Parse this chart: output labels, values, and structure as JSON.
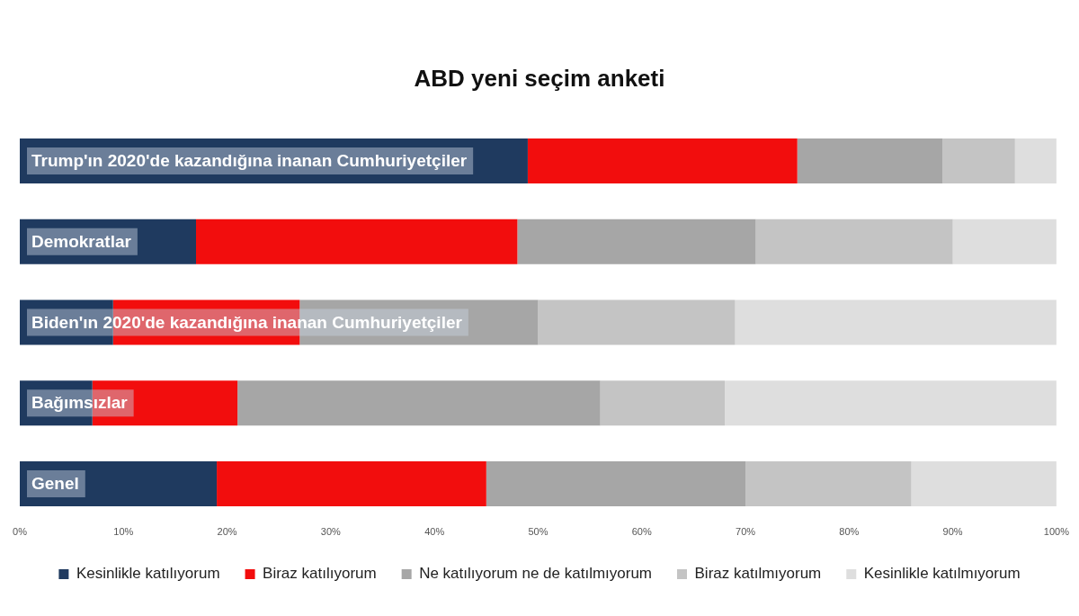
{
  "chart_data": {
    "type": "bar",
    "orientation": "horizontal",
    "stacked": true,
    "title": "ABD yeni seçim anketi",
    "categories": [
      "Trump'ın 2020'de kazandığına inanan Cumhuriyetçiler",
      "Demokratlar",
      "Biden'ın 2020'de kazandığına inanan Cumhuriyetçiler",
      "Bağımsızlar",
      "Genel"
    ],
    "series": [
      {
        "name": "Kesinlikle katılıyorum",
        "color": "#1f3a5f",
        "values": [
          49,
          17,
          9,
          7,
          19
        ]
      },
      {
        "name": "Biraz katılıyorum",
        "color": "#f20d0d",
        "values": [
          26,
          31,
          18,
          14,
          26
        ]
      },
      {
        "name": "Ne katılıyorum ne de katılmıyorum",
        "color": "#a6a6a6",
        "values": [
          14,
          23,
          23,
          35,
          25
        ]
      },
      {
        "name": "Biraz katılmıyorum",
        "color": "#c4c4c4",
        "values": [
          7,
          19,
          19,
          12,
          16
        ]
      },
      {
        "name": "Kesinlikle katılmıyorum",
        "color": "#dedede",
        "values": [
          4,
          10,
          31,
          32,
          14
        ]
      }
    ],
    "xlim": [
      0,
      100
    ],
    "xticks": [
      {
        "value": 0,
        "label": "0%"
      },
      {
        "value": 10,
        "label": "10%"
      },
      {
        "value": 20,
        "label": "20%"
      },
      {
        "value": 30,
        "label": "30%"
      },
      {
        "value": 40,
        "label": "40%"
      },
      {
        "value": 50,
        "label": "50%"
      },
      {
        "value": 60,
        "label": "60%"
      },
      {
        "value": 70,
        "label": "70%"
      },
      {
        "value": 80,
        "label": "80%"
      },
      {
        "value": 90,
        "label": "90%"
      },
      {
        "value": 100,
        "label": "100%"
      }
    ],
    "grid": false,
    "legend": "bottom"
  }
}
